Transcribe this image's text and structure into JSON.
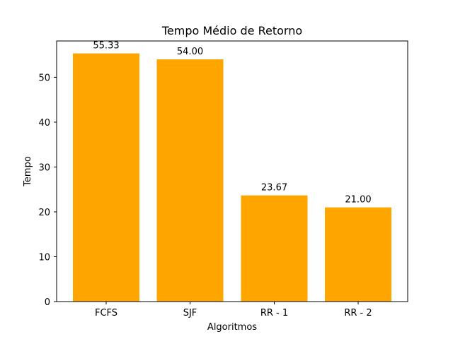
{
  "chart_data": {
    "type": "bar",
    "title": "Tempo Médio de Retorno",
    "xlabel": "Algoritmos",
    "ylabel": "Tempo",
    "categories": [
      "FCFS",
      "SJF",
      "RR - 1",
      "RR - 2"
    ],
    "values": [
      55.33,
      54.0,
      23.67,
      21.0
    ],
    "data_labels": [
      "55.33",
      "54.00",
      "23.67",
      "21.00"
    ],
    "yticks": [
      0,
      10,
      20,
      30,
      40,
      50
    ],
    "ylim": [
      0,
      58.1
    ],
    "bar_color": "#ffa500",
    "grid": false
  }
}
